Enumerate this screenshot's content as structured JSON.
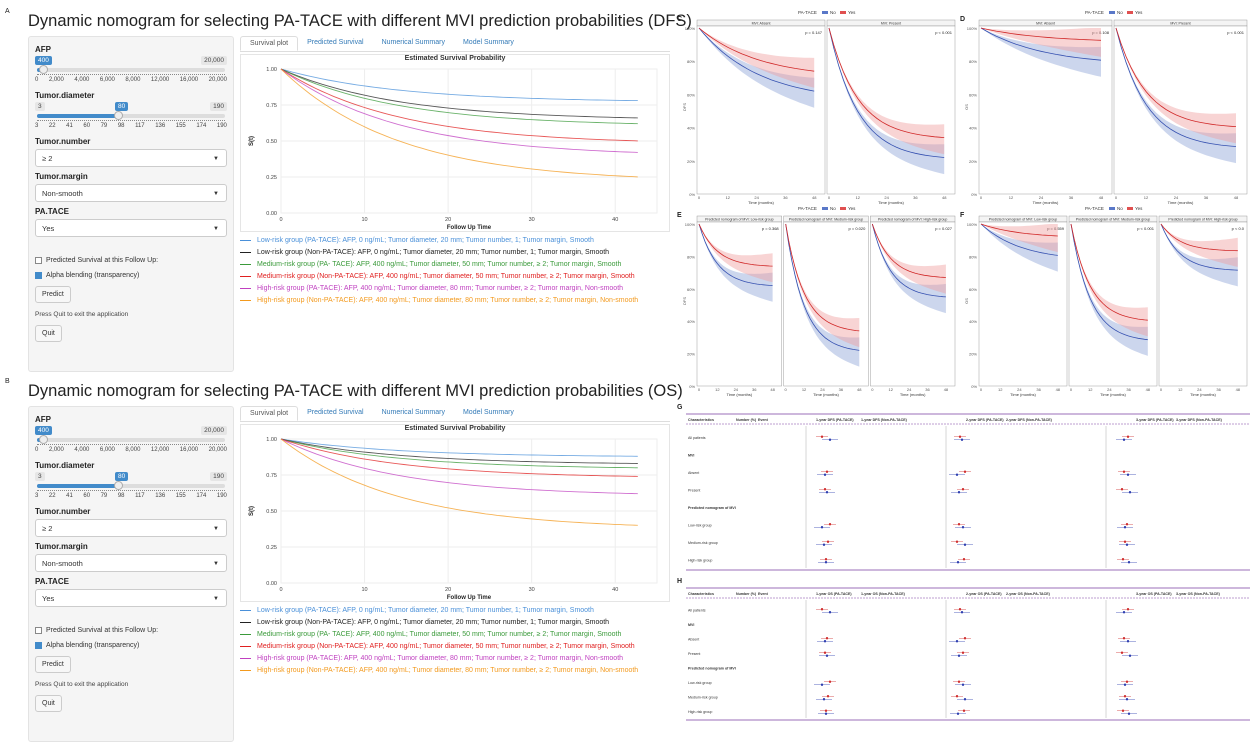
{
  "panels": {
    "a": "A",
    "b": "B",
    "c": "C",
    "d": "D",
    "e": "E",
    "f": "F",
    "g": "G",
    "h": "H"
  },
  "apps": [
    {
      "title": "Dynamic nomogram for selecting PA-TACE with different MVI prediction probabilities (DFS)",
      "afp": {
        "label": "AFP",
        "min": "0",
        "max": "20,000",
        "current": "400",
        "ticks": [
          "0",
          "2,000",
          "4,000",
          "6,000",
          "8,000",
          "12,000",
          "16,000",
          "20,000"
        ]
      },
      "tumor_diameter": {
        "label": "Tumor.diameter",
        "min": "3",
        "max": "190",
        "current": "80",
        "ticks": [
          "3",
          "22",
          "41",
          "60",
          "79",
          "98",
          "117",
          "136",
          "155",
          "174",
          "190"
        ]
      },
      "tumor_number": {
        "label": "Tumor.number",
        "value": "≥ 2"
      },
      "tumor_margin": {
        "label": "Tumor.margin",
        "value": "Non-smooth"
      },
      "pa_tace": {
        "label": "PA.TACE",
        "value": "Yes"
      },
      "predicted_check": "Predicted Survival at this Follow Up:",
      "alpha_check": "Alpha blending (transparency)",
      "predict_btn": "Predict",
      "quit_note": "Press Quit to exit the application",
      "quit_btn": "Quit",
      "tabs": [
        "Survival plot",
        "Predicted Survival",
        "Numerical Summary",
        "Model Summary"
      ],
      "plot_title": "Estimated Survival Probability",
      "ylabel": "S(t)",
      "xlabel": "Follow Up Time",
      "yticks": [
        "1.00",
        "0.75",
        "0.50",
        "0.25",
        "0.00"
      ],
      "xticks": [
        "0",
        "10",
        "20",
        "30",
        "40"
      ],
      "legend": [
        {
          "text": "Low-risk group (PA-TACE): AFP, 0 ng/mL; Tumor diameter, 20 mm; Tumor number, 1; Tumor margin, Smooth",
          "color": "#4a90d9"
        },
        {
          "text": "Low-risk group (Non-PA-TACE): AFP, 0 ng/mL; Tumor diameter, 20 mm; Tumor number, 1; Tumor margin, Smooth",
          "color": "#222222"
        },
        {
          "text": "Medium-risk group (PA- TACE): AFP, 400 ng/mL; Tumor diameter, 50 mm; Tumor number, ≥ 2; Tumor margin, Smooth",
          "color": "#3a9a3a"
        },
        {
          "text": "Medium-risk group (Non-PA-TACE): AFP, 400 ng/mL; Tumor diameter, 50 mm; Tumor number, ≥ 2; Tumor margin, Smooth",
          "color": "#e02020"
        },
        {
          "text": "High-risk group (PA-TACE): AFP, 400 ng/mL; Tumor diameter, 80 mm; Tumor number, ≥ 2; Tumor margin, Non-smooth",
          "color": "#c040c0"
        },
        {
          "text": "High-risk group (Non-PA-TACE): AFP, 400 ng/mL; Tumor diameter, 80 mm; Tumor number, ≥ 2; Tumor margin, Non-smooth",
          "color": "#f39a1e"
        }
      ],
      "curves_end": [
        0.78,
        0.66,
        0.62,
        0.5,
        0.42,
        0.25
      ]
    },
    {
      "title": "Dynamic nomogram for selecting PA-TACE with different MVI prediction probabilities (OS)",
      "afp": {
        "label": "AFP",
        "min": "0",
        "max": "20,000",
        "current": "400",
        "ticks": [
          "0",
          "2,000",
          "4,000",
          "6,000",
          "8,000",
          "12,000",
          "16,000",
          "20,000"
        ]
      },
      "tumor_diameter": {
        "label": "Tumor.diameter",
        "min": "3",
        "max": "190",
        "current": "80",
        "ticks": [
          "3",
          "22",
          "41",
          "60",
          "79",
          "98",
          "117",
          "136",
          "155",
          "174",
          "190"
        ]
      },
      "tumor_number": {
        "label": "Tumor.number",
        "value": "≥ 2"
      },
      "tumor_margin": {
        "label": "Tumor.margin",
        "value": "Non-smooth"
      },
      "pa_tace": {
        "label": "PA.TACE",
        "value": "Yes"
      },
      "predicted_check": "Predicted Survival at this Follow Up:",
      "alpha_check": "Alpha blending (transparency)",
      "predict_btn": "Predict",
      "quit_note": "Press Quit to exit the application",
      "quit_btn": "Quit",
      "tabs": [
        "Survival plot",
        "Predicted Survival",
        "Numerical Summary",
        "Model Summary"
      ],
      "plot_title": "Estimated Survival Probability",
      "ylabel": "S(t)",
      "xlabel": "Follow Up Time",
      "yticks": [
        "1.00",
        "0.75",
        "0.50",
        "0.25",
        "0.00"
      ],
      "xticks": [
        "0",
        "10",
        "20",
        "30",
        "40"
      ],
      "legend": [
        {
          "text": "Low-risk group (PA-TACE): AFP, 0 ng/mL; Tumor diameter, 20 mm; Tumor number, 1; Tumor margin, Smooth",
          "color": "#4a90d9"
        },
        {
          "text": "Low-risk group (Non-PA-TACE): AFP, 0 ng/mL; Tumor diameter, 20 mm; Tumor number, 1; Tumor margin, Smooth",
          "color": "#222222"
        },
        {
          "text": "Medium-risk group (PA- TACE): AFP, 400 ng/mL; Tumor diameter, 50 mm; Tumor number, ≥ 2; Tumor margin, Smooth",
          "color": "#3a9a3a"
        },
        {
          "text": "Medium-risk group (Non-PA-TACE): AFP, 400 ng/mL; Tumor diameter, 50 mm; Tumor number, ≥ 2; Tumor margin, Smooth",
          "color": "#e02020"
        },
        {
          "text": "High-risk group (PA-TACE): AFP, 400 ng/mL; Tumor diameter, 80 mm; Tumor number, ≥ 2; Tumor margin, Non-smooth",
          "color": "#c040c0"
        },
        {
          "text": "High-risk group (Non-PA-TACE): AFP, 400 ng/mL; Tumor diameter, 80 mm; Tumor number, ≥ 2; Tumor margin, Non-smooth",
          "color": "#f39a1e"
        }
      ],
      "curves_end": [
        0.88,
        0.83,
        0.8,
        0.74,
        0.62,
        0.4
      ]
    }
  ],
  "km_legend": {
    "title": "PA-TACE",
    "no": "No",
    "yes": "Yes"
  },
  "km_panels": {
    "c": {
      "sub": [
        "MVI: Absent",
        "MVI: Present"
      ],
      "p": [
        "p = 0.147",
        "p < 0.001"
      ],
      "ylab": "DFS",
      "xlab": "Time (months)"
    },
    "d": {
      "sub": [
        "MVI: Absent",
        "MVI: Present"
      ],
      "p": [
        "p = 0.108",
        "p < 0.001"
      ],
      "ylab": "OS",
      "xlab": "Time (months)"
    },
    "e": {
      "sub": [
        "Predicted nomogram of MVI: Low-risk group",
        "Predicted nomogram of MVI: Medium-risk group",
        "Predicted nomogram of MVI: High-risk group"
      ],
      "p": [
        "p = 0.368",
        "p = 0.020",
        "p = 0.027"
      ],
      "ylab": "DFS",
      "xlab": "Time (months)"
    },
    "f": {
      "sub": [
        "Predicted nomogram of MVI: Low-risk group",
        "Predicted nomogram of MVI: Medium-risk group",
        "Predicted nomogram of MVI: High-risk group"
      ],
      "p": [
        "p = 0.559",
        "p < 0.001",
        "p < 0.0"
      ],
      "ylab": "OS",
      "xlab": "Time (months)"
    }
  },
  "km_yticks": [
    "100%",
    "80%",
    "60%",
    "40%",
    "20%",
    "0%"
  ],
  "km_xticks": [
    "0",
    "12",
    "24",
    "36",
    "48"
  ],
  "forest": {
    "g": {
      "cols": [
        "Characteristics",
        "Number (%)",
        "Event",
        "1-year DFS (PA-TACE)",
        "1-year DFS (Non-PA-TACE)",
        "2-year DFS (PA-TACE)",
        "2-year DFS (Non-PA-TACE)",
        "3-year DFS (PA-TACE)",
        "3-year DFS (Non-PA-TACE)"
      ],
      "rows": [
        "All patients",
        "MVI",
        "Absent",
        "Present",
        "Predicted nomogram of MVI",
        "Low-risk group",
        "Medium-risk group",
        "High-risk group"
      ]
    },
    "h": {
      "cols": [
        "Characteristics",
        "Number (%)",
        "Event",
        "1-year OS (PA-TACE)",
        "1-year OS (Non-PA-TACE)",
        "2-year OS (PA-TACE)",
        "2-year OS (Non-PA-TACE)",
        "3-year OS (PA-TACE)",
        "3-year OS (Non-PA-TACE)"
      ],
      "rows": [
        "All patients",
        "MVI",
        "Absent",
        "Present",
        "Predicted nomogram of MVI",
        "Low-risk group",
        "Medium-risk group",
        "High-risk group"
      ]
    }
  }
}
